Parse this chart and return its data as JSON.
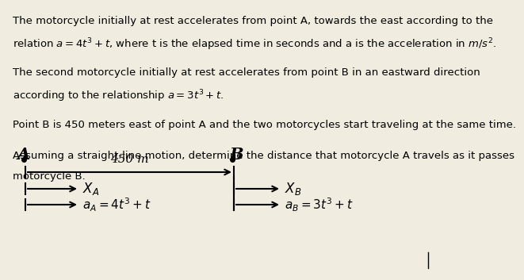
{
  "background_color": "#f0ece0",
  "text_color": "#000000",
  "para1_line1": "The motorcycle initially at rest accelerates from point A, towards the east according to the",
  "para1_line2": "relation $a = 4t^3 + t$, where t is the elapsed time in seconds and a is the acceleration in $m/s^2$.",
  "para2_line1": "The second motorcycle initially at rest accelerates from point B in an eastward direction",
  "para2_line2": "according to the relationship $a = 3t^3 + t$.",
  "para3": "Point B is 450 meters east of point A and the two motorcycles start traveling at the same time.",
  "para4_line1": "Assuming a straight-line motion, determine the distance that motorcycle A travels as it passes",
  "para4_line2": "motorcycle B.",
  "font_size_text": 9.5,
  "diag_label_A": "A",
  "diag_label_B": "B",
  "dist_label": "450 m",
  "xa_label": "$X_A$",
  "xb_label": "$X_B$",
  "aa_label": "$a_A = 4t^3+t$",
  "ab_label": "$a_B = 3t^3+t$"
}
